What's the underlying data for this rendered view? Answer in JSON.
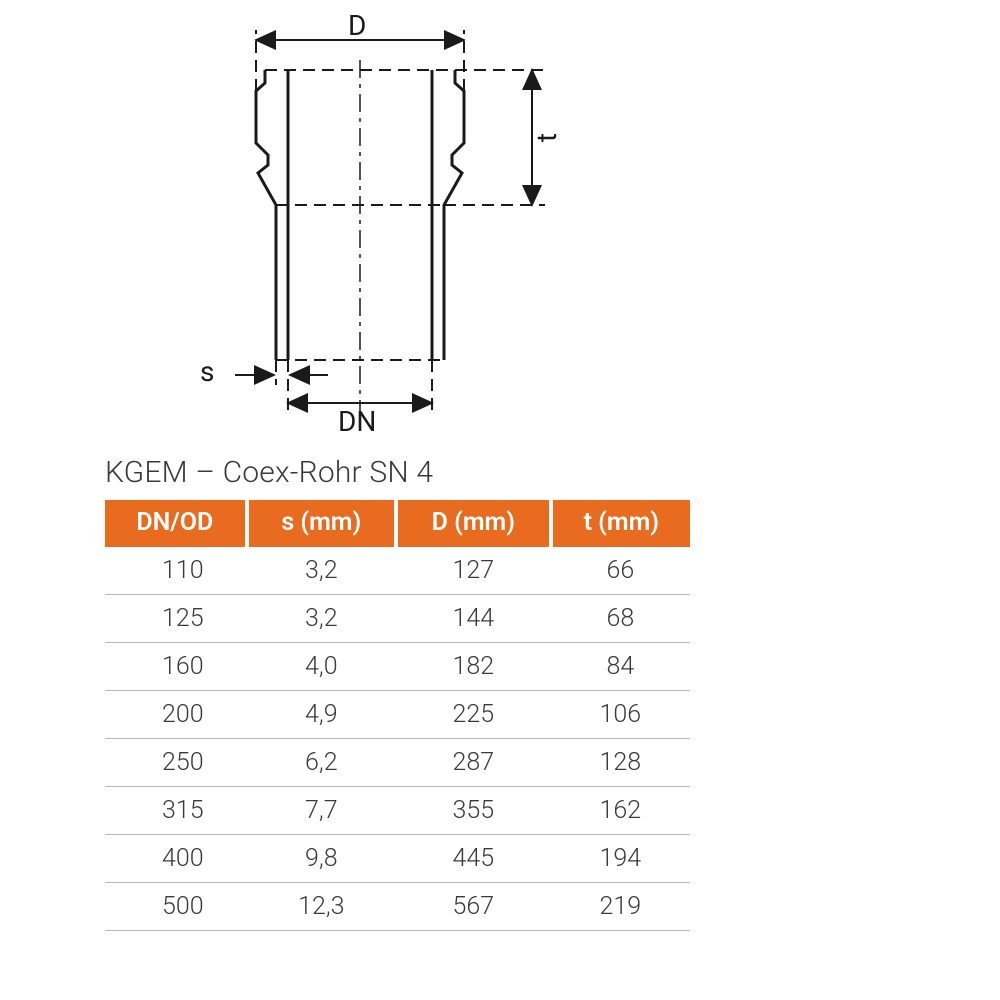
{
  "diagram": {
    "labels": {
      "D": "D",
      "t": "t",
      "s": "s",
      "DN": "DN"
    },
    "stroke": "#1a1a1a",
    "stroke_width_main": 3,
    "stroke_width_dim": 2,
    "dash_pattern": "10 6 3 6"
  },
  "table": {
    "title": "KGEM – Coex-Rohr SN 4",
    "header_bg": "#e96b20",
    "header_fg": "#ffffff",
    "row_fg": "#3a3a3a",
    "row_border": "#b8b8b8",
    "columns": [
      "DN/OD",
      "s (mm)",
      "D (mm)",
      "t (mm)"
    ],
    "rows": [
      [
        "110",
        "3,2",
        "127",
        "66"
      ],
      [
        "125",
        "3,2",
        "144",
        "68"
      ],
      [
        "160",
        "4,0",
        "182",
        "84"
      ],
      [
        "200",
        "4,9",
        "225",
        "106"
      ],
      [
        "250",
        "6,2",
        "287",
        "128"
      ],
      [
        "315",
        "7,7",
        "355",
        "162"
      ],
      [
        "400",
        "9,8",
        "445",
        "194"
      ],
      [
        "500",
        "12,3",
        "567",
        "219"
      ]
    ]
  }
}
